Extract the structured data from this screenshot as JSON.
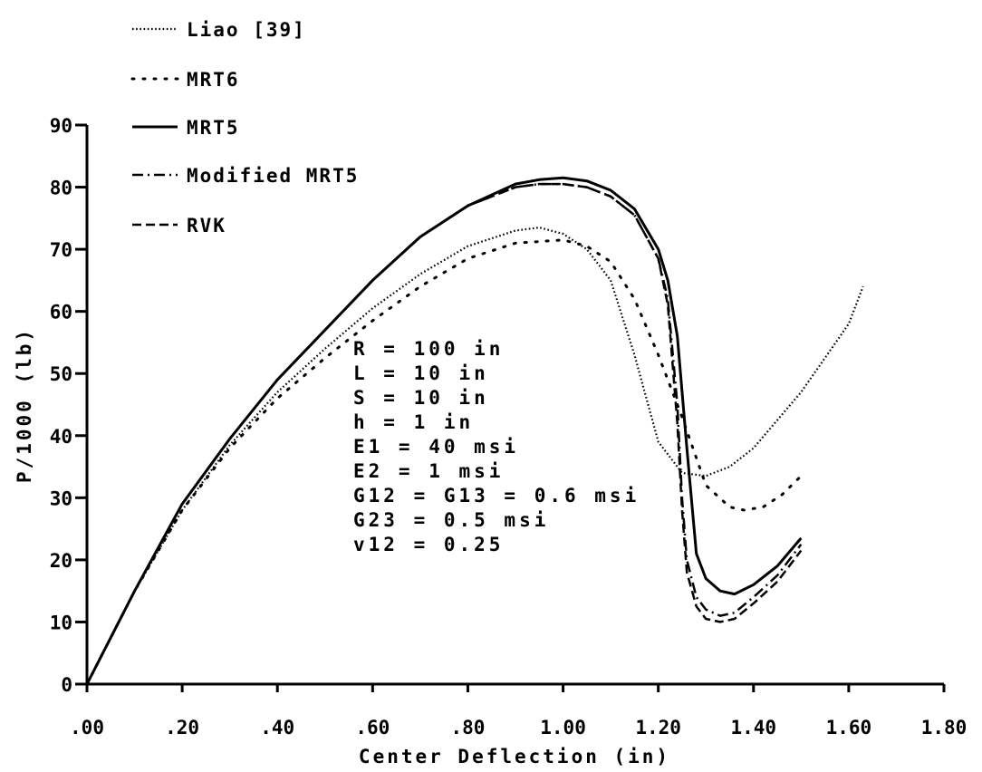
{
  "chart_data": {
    "type": "line",
    "title": "",
    "xlabel": "Center Deflection (in)",
    "ylabel": "P/1000 (lb)",
    "xlim": [
      0,
      1.8
    ],
    "ylim": [
      0,
      90
    ],
    "x_ticks": [
      0,
      0.2,
      0.4,
      0.6,
      0.8,
      1.0,
      1.2,
      1.4,
      1.6,
      1.8
    ],
    "x_tick_labels": [
      ".00",
      ".20",
      ".40",
      ".60",
      ".80",
      "1.00",
      "1.20",
      "1.40",
      "1.60",
      "1.80"
    ],
    "y_ticks": [
      0,
      10,
      20,
      30,
      40,
      50,
      60,
      70,
      80,
      90
    ],
    "y_tick_labels": [
      "0",
      "10",
      "20",
      "30",
      "40",
      "50",
      "60",
      "70",
      "80",
      "90"
    ],
    "grid": false,
    "legend_position": "top-left",
    "parameters": [
      "R = 100 in",
      "L = 10 in",
      "S = 10 in",
      "h = 1 in",
      "E1 = 40 msi",
      "E2 = 1 msi",
      "G12 = G13 = 0.6 msi",
      "G23 = 0.5 msi",
      "v12 = 0.25"
    ],
    "series": [
      {
        "name": "Liao [39]",
        "style": "fine-dotted",
        "x": [
          0,
          0.1,
          0.2,
          0.3,
          0.4,
          0.5,
          0.6,
          0.7,
          0.8,
          0.9,
          0.95,
          1.0,
          1.05,
          1.1,
          1.15,
          1.2,
          1.25,
          1.3,
          1.35,
          1.4,
          1.5,
          1.6,
          1.63
        ],
        "y": [
          0,
          15,
          28,
          38.5,
          47,
          54,
          60.5,
          66,
          70.5,
          73,
          73.5,
          72.5,
          70,
          65,
          53,
          39,
          34,
          33.5,
          35,
          38,
          47,
          58,
          64
        ]
      },
      {
        "name": "MRT6",
        "style": "sparse-dotted",
        "x": [
          0,
          0.1,
          0.2,
          0.3,
          0.4,
          0.5,
          0.6,
          0.7,
          0.8,
          0.9,
          1.0,
          1.05,
          1.1,
          1.15,
          1.2,
          1.25,
          1.3,
          1.35,
          1.38,
          1.42,
          1.46,
          1.5
        ],
        "y": [
          0,
          15,
          28,
          38,
          46,
          52.5,
          58.5,
          64,
          68.5,
          71,
          71.5,
          70.5,
          68,
          62,
          53,
          43,
          32,
          28.5,
          28,
          28.5,
          30.5,
          33.5
        ]
      },
      {
        "name": "MRT5",
        "style": "solid",
        "x": [
          0,
          0.1,
          0.2,
          0.3,
          0.4,
          0.5,
          0.6,
          0.7,
          0.8,
          0.9,
          0.95,
          1.0,
          1.05,
          1.1,
          1.15,
          1.2,
          1.22,
          1.24,
          1.26,
          1.28,
          1.3,
          1.33,
          1.36,
          1.4,
          1.45,
          1.5
        ],
        "y": [
          0,
          15,
          29,
          39.5,
          49,
          57,
          65,
          72,
          77,
          80.5,
          81.2,
          81.5,
          81,
          79.5,
          76.5,
          70,
          65,
          56,
          38,
          21,
          17,
          15,
          14.5,
          16,
          19,
          23.5
        ]
      },
      {
        "name": "Modified MRT5",
        "style": "dash-dot",
        "x": [
          0,
          0.1,
          0.2,
          0.3,
          0.4,
          0.5,
          0.6,
          0.7,
          0.8,
          0.9,
          0.95,
          1.0,
          1.05,
          1.1,
          1.15,
          1.2,
          1.22,
          1.24,
          1.25,
          1.26,
          1.28,
          1.3,
          1.33,
          1.36,
          1.4,
          1.45,
          1.5
        ],
        "y": [
          0,
          15,
          29,
          39.5,
          49,
          57,
          65,
          72,
          77,
          80,
          80.5,
          80.5,
          80,
          78.5,
          75.5,
          68.5,
          62,
          45,
          30,
          20,
          14,
          12,
          11,
          11.5,
          14,
          17.5,
          22.5
        ]
      },
      {
        "name": "RVK",
        "style": "dashed",
        "x": [
          0,
          0.1,
          0.2,
          0.3,
          0.4,
          0.5,
          0.6,
          0.7,
          0.8,
          0.9,
          0.95,
          1.0,
          1.05,
          1.1,
          1.15,
          1.2,
          1.22,
          1.24,
          1.25,
          1.26,
          1.28,
          1.3,
          1.33,
          1.36,
          1.4,
          1.45,
          1.5
        ],
        "y": [
          0,
          15,
          29,
          39.5,
          49,
          57,
          65,
          72,
          77,
          80,
          80.5,
          80.5,
          80,
          78.5,
          75.5,
          68.5,
          61,
          42,
          28,
          18,
          12.5,
          10.5,
          10,
          10.5,
          13,
          16.5,
          21.5
        ]
      }
    ]
  }
}
